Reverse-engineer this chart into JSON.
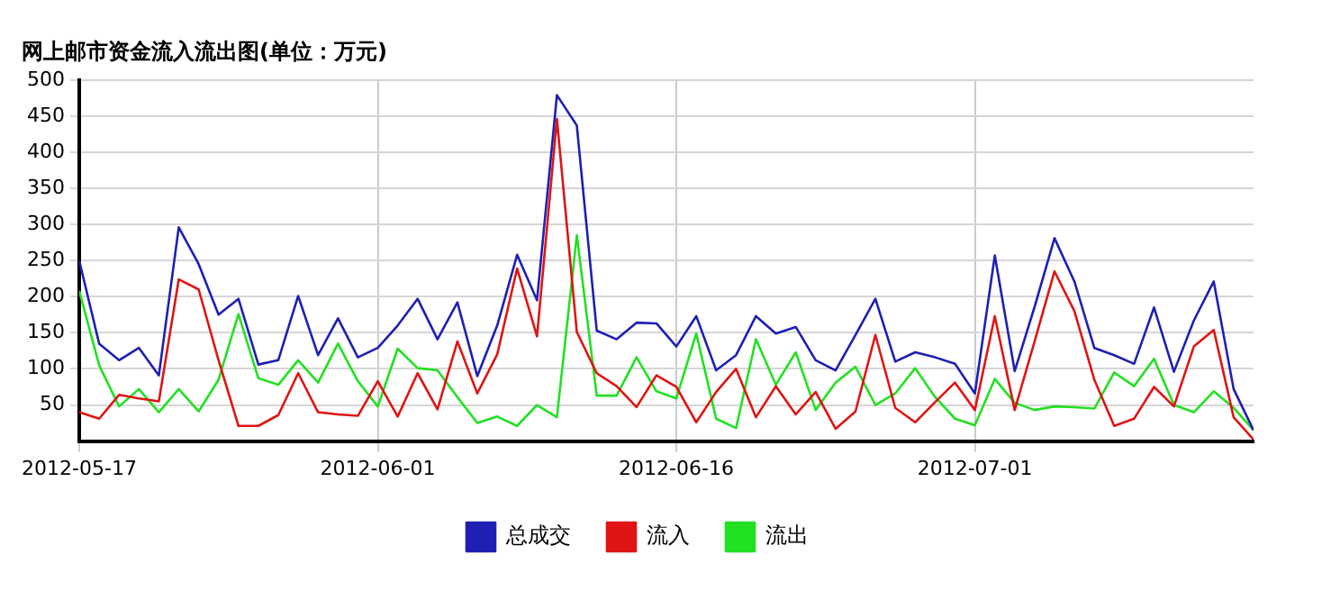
{
  "chart_data": {
    "type": "line",
    "title": "网上邮市资金流入流出图(单位：万元)",
    "x": [
      "2012-05-17",
      "2012-05-18",
      "2012-05-19",
      "2012-05-20",
      "2012-05-21",
      "2012-05-22",
      "2012-05-23",
      "2012-05-24",
      "2012-05-25",
      "2012-05-26",
      "2012-05-27",
      "2012-05-28",
      "2012-05-29",
      "2012-05-30",
      "2012-05-31",
      "2012-06-01",
      "2012-06-02",
      "2012-06-03",
      "2012-06-04",
      "2012-06-05",
      "2012-06-06",
      "2012-06-07",
      "2012-06-08",
      "2012-06-09",
      "2012-06-10",
      "2012-06-11",
      "2012-06-12",
      "2012-06-13",
      "2012-06-14",
      "2012-06-15",
      "2012-06-16",
      "2012-06-17",
      "2012-06-18",
      "2012-06-19",
      "2012-06-20",
      "2012-06-21",
      "2012-06-22",
      "2012-06-23",
      "2012-06-24",
      "2012-06-25",
      "2012-06-26",
      "2012-06-27",
      "2012-06-28",
      "2012-06-29",
      "2012-06-30",
      "2012-07-01",
      "2012-07-02",
      "2012-07-03",
      "2012-07-04",
      "2012-07-05",
      "2012-07-06",
      "2012-07-07",
      "2012-07-08",
      "2012-07-09",
      "2012-07-10",
      "2012-07-11",
      "2012-07-12",
      "2012-07-13",
      "2012-07-14",
      "2012-07-15"
    ],
    "series": [
      {
        "name": "总成交",
        "color": "#1f1fb4",
        "values": [
          250,
          135,
          112,
          129,
          91,
          296,
          245,
          175,
          197,
          106,
          112,
          201,
          119,
          170,
          116,
          129,
          160,
          197,
          141,
          192,
          90,
          160,
          258,
          195,
          479,
          437,
          153,
          141,
          164,
          163,
          131,
          173,
          98,
          119,
          173,
          149,
          158,
          112,
          98,
          147,
          197,
          110,
          123,
          116,
          107,
          66,
          257,
          97,
          186,
          281,
          221,
          129,
          119,
          107,
          185,
          96,
          167,
          221,
          72,
          15
        ]
      },
      {
        "name": "流入",
        "color": "#e01414",
        "values": [
          40,
          31,
          64,
          59,
          55,
          224,
          210,
          112,
          21,
          21,
          36,
          94,
          40,
          37,
          35,
          83,
          34,
          94,
          44,
          138,
          66,
          120,
          239,
          145,
          446,
          151,
          94,
          76,
          47,
          91,
          75,
          26,
          68,
          100,
          33,
          76,
          37,
          68,
          17,
          41,
          147,
          46,
          26,
          54,
          81,
          43,
          173,
          43,
          138,
          235,
          180,
          85,
          21,
          31,
          75,
          48,
          131,
          154,
          33,
          2
        ]
      },
      {
        "name": "流出",
        "color": "#22e022",
        "values": [
          208,
          105,
          48,
          72,
          40,
          72,
          41,
          85,
          176,
          87,
          78,
          112,
          81,
          135,
          83,
          48,
          128,
          101,
          98,
          61,
          25,
          34,
          21,
          50,
          33,
          285,
          63,
          63,
          116,
          69,
          59,
          149,
          31,
          18,
          141,
          78,
          123,
          43,
          81,
          103,
          50,
          66,
          101,
          61,
          31,
          22,
          86,
          53,
          43,
          48,
          47,
          45,
          95,
          76,
          114,
          50,
          40,
          69,
          46,
          15
        ]
      }
    ],
    "xlim": [
      "2012-05-17",
      "2012-07-15"
    ],
    "xticks": [
      "2012-05-17",
      "2012-06-01",
      "2012-06-16",
      "2012-07-01"
    ],
    "ylim": [
      0,
      500
    ],
    "yticks": [
      50,
      100,
      150,
      200,
      250,
      300,
      350,
      400,
      450,
      500
    ],
    "grid": true,
    "legend": "bottom",
    "marker": "none",
    "line_style": "solid"
  }
}
